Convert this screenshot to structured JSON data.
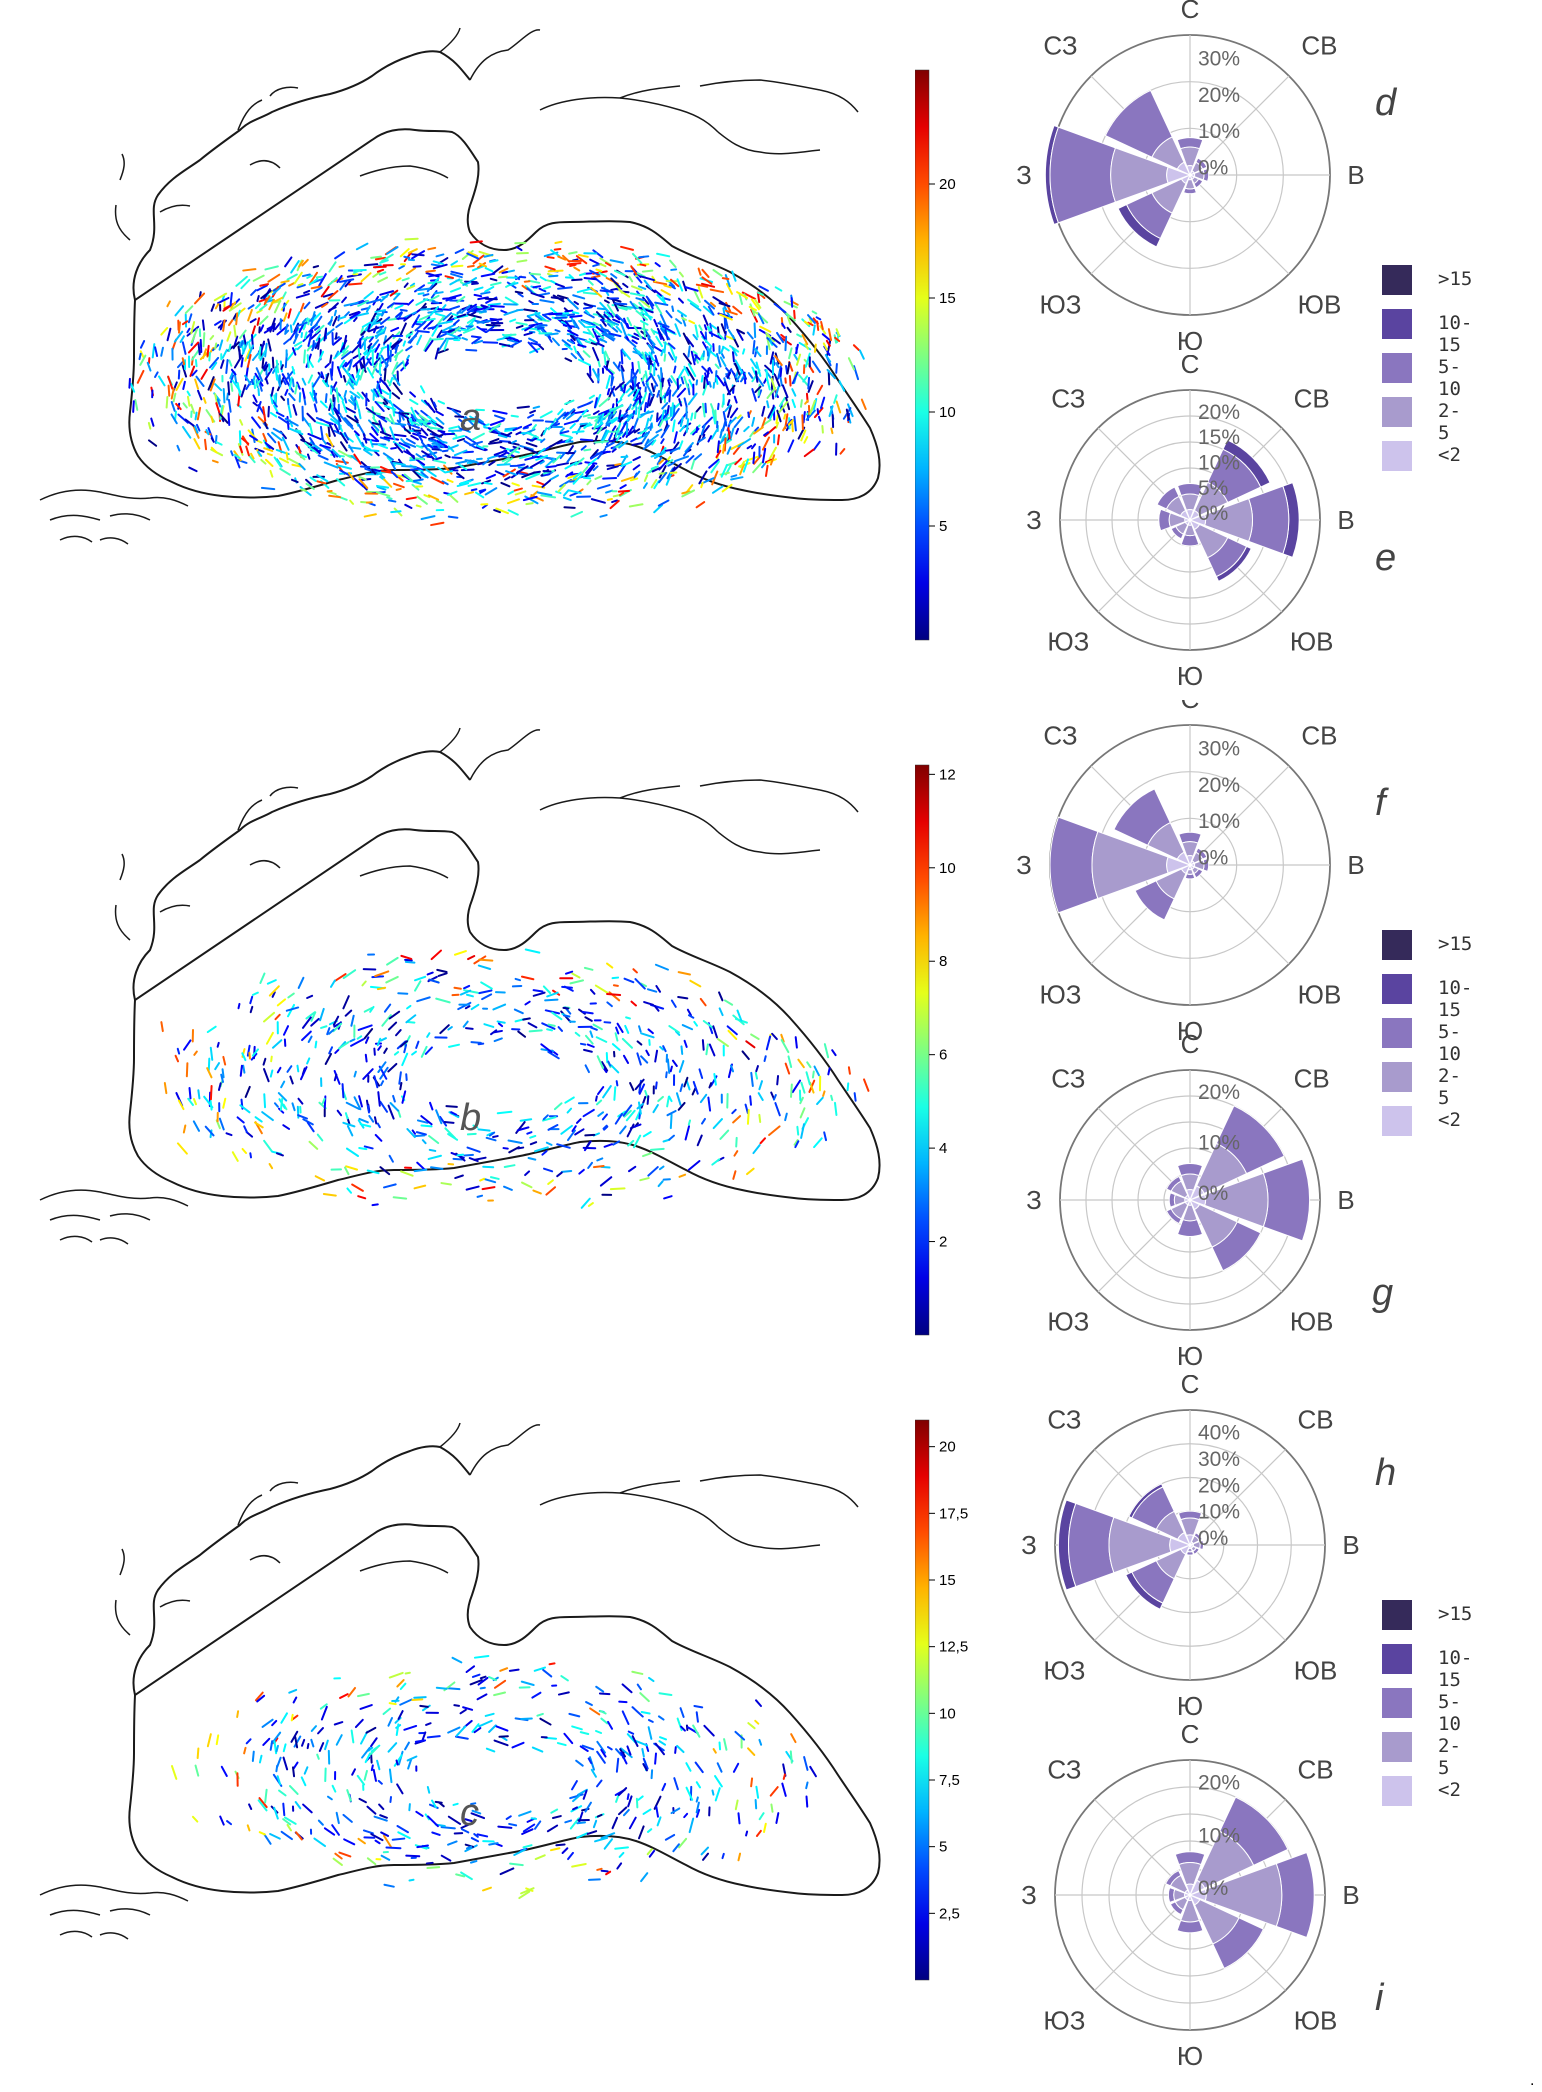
{
  "colors": {
    "land_outline": "#1a1a1a",
    "rose_grid": "#c8c8c8",
    "rose_border": "#777777"
  },
  "legend": [
    {
      "label": ">15",
      "color": "#352a5a"
    },
    {
      "label": "10-15",
      "color": "#5a44a0"
    },
    {
      "label": "5-10",
      "color": "#8a76bf"
    },
    {
      "label": "2-5",
      "color": "#a89bcd"
    },
    {
      "label": "<2",
      "color": "#cdc3ec"
    }
  ],
  "direction_labels": [
    "С",
    "СВ",
    "В",
    "ЮВ",
    "Ю",
    "ЮЗ",
    "З",
    "СЗ"
  ],
  "chart_data": [
    {
      "type": "map",
      "label": "a",
      "colorbar": {
        "min": 0,
        "max": 25,
        "ticks": [
          "20",
          "15",
          "10",
          "5"
        ],
        "tick_values": [
          20,
          15,
          10,
          5
        ]
      }
    },
    {
      "type": "map",
      "label": "b",
      "colorbar": {
        "min": 0,
        "max": 12.2,
        "ticks": [
          "12",
          "10",
          "8",
          "6",
          "4",
          "2"
        ],
        "tick_values": [
          12,
          10,
          8,
          6,
          4,
          2
        ]
      }
    },
    {
      "type": "map",
      "label": "c",
      "colorbar": {
        "min": 0,
        "max": 21,
        "ticks": [
          "20",
          "17,5",
          "15",
          "12,5",
          "10",
          "7,5",
          "5",
          "2,5"
        ],
        "tick_values": [
          20,
          17.5,
          15,
          12.5,
          10,
          7.5,
          5,
          2.5
        ]
      }
    },
    {
      "type": "windrose",
      "label": "d",
      "rmax": 30,
      "rings": [
        10,
        20,
        30
      ],
      "ring_labels": [
        "0%",
        "10%",
        "20%",
        "30%"
      ],
      "directions": [
        "С",
        "СВ",
        "В",
        "ЮВ",
        "Ю",
        "ЮЗ",
        "З",
        "СЗ"
      ],
      "bins": [
        "<2",
        "2-5",
        "5-10",
        "10-15",
        ">15"
      ],
      "values": [
        [
          2,
          4,
          2,
          0,
          0
        ],
        [
          1,
          2,
          1,
          0,
          0
        ],
        [
          1,
          2,
          1,
          0,
          0
        ],
        [
          1,
          1,
          1,
          0,
          0
        ],
        [
          1,
          2,
          1,
          0,
          0
        ],
        [
          2,
          7,
          6,
          2,
          0
        ],
        [
          5,
          12,
          13,
          1,
          0
        ],
        [
          3,
          6,
          11,
          0,
          0
        ]
      ]
    },
    {
      "type": "windrose",
      "label": "e",
      "rmax": 25,
      "rings": [
        5,
        10,
        15,
        20,
        25
      ],
      "ring_labels": [
        "0%",
        "5%",
        "10%",
        "15%",
        "20%"
      ],
      "directions": [
        "С",
        "СВ",
        "В",
        "ЮВ",
        "Ю",
        "ЮЗ",
        "З",
        "СЗ"
      ],
      "bins": [
        "<2",
        "2-5",
        "5-10",
        "10-15",
        ">15"
      ],
      "values": [
        [
          2,
          3,
          2,
          0,
          0
        ],
        [
          2,
          6,
          7,
          2,
          0
        ],
        [
          3,
          9,
          7,
          2,
          0
        ],
        [
          2,
          6,
          4,
          1,
          0
        ],
        [
          1,
          2,
          2,
          0,
          0
        ],
        [
          1,
          2,
          1,
          0,
          0
        ],
        [
          1,
          3,
          2,
          0,
          0
        ],
        [
          2,
          3,
          2,
          0,
          0
        ]
      ]
    },
    {
      "type": "windrose",
      "label": "f",
      "rmax": 30,
      "rings": [
        10,
        20,
        30
      ],
      "ring_labels": [
        "0%",
        "10%",
        "20%",
        "30%"
      ],
      "directions": [
        "С",
        "СВ",
        "В",
        "ЮВ",
        "Ю",
        "ЮЗ",
        "З",
        "СЗ"
      ],
      "bins": [
        "<2",
        "2-5",
        "5-10",
        "10-15",
        ">15"
      ],
      "values": [
        [
          2,
          3,
          2,
          0,
          0
        ],
        [
          1,
          2,
          1,
          0,
          0
        ],
        [
          1,
          2,
          1,
          0,
          0
        ],
        [
          1,
          1,
          1,
          0,
          0
        ],
        [
          1,
          1,
          1,
          0,
          0
        ],
        [
          2,
          6,
          5,
          0,
          0
        ],
        [
          5,
          16,
          9,
          0,
          0
        ],
        [
          3,
          7,
          8,
          0,
          0
        ]
      ]
    },
    {
      "type": "windrose",
      "label": "g",
      "rmax": 25,
      "rings": [
        5,
        10,
        15,
        20,
        25
      ],
      "ring_labels": [
        "0%",
        "10%",
        "20%"
      ],
      "directions": [
        "С",
        "СВ",
        "В",
        "ЮВ",
        "Ю",
        "ЮЗ",
        "З",
        "СЗ"
      ],
      "bins": [
        "<2",
        "2-5",
        "5-10",
        "10-15",
        ">15"
      ],
      "values": [
        [
          2,
          3,
          2,
          0,
          0
        ],
        [
          3,
          9,
          8,
          0,
          0
        ],
        [
          3,
          12,
          8,
          0,
          0
        ],
        [
          2,
          8,
          5,
          0,
          0
        ],
        [
          1,
          3,
          3,
          0,
          0
        ],
        [
          1,
          3,
          1,
          0,
          0
        ],
        [
          1,
          2,
          1,
          0,
          0
        ],
        [
          1,
          3,
          1,
          0,
          0
        ]
      ]
    },
    {
      "type": "windrose",
      "label": "h",
      "rmax": 40,
      "rings": [
        10,
        20,
        30,
        40
      ],
      "ring_labels": [
        "0%",
        "10%",
        "20%",
        "30%",
        "40%"
      ],
      "directions": [
        "С",
        "СВ",
        "В",
        "ЮВ",
        "Ю",
        "ЮЗ",
        "З",
        "СЗ"
      ],
      "bins": [
        "<2",
        "2-5",
        "5-10",
        "10-15",
        ">15"
      ],
      "values": [
        [
          3,
          5,
          2,
          0,
          0
        ],
        [
          1,
          2,
          1,
          0,
          0
        ],
        [
          1,
          2,
          1,
          0,
          0
        ],
        [
          1,
          1,
          1,
          0,
          0
        ],
        [
          1,
          1,
          1,
          0,
          0
        ],
        [
          3,
          8,
          8,
          2,
          0
        ],
        [
          6,
          18,
          12,
          3,
          0
        ],
        [
          4,
          7,
          8,
          1,
          0
        ]
      ]
    },
    {
      "type": "windrose",
      "label": "i",
      "rmax": 25,
      "rings": [
        5,
        10,
        15,
        20,
        25
      ],
      "ring_labels": [
        "0%",
        "10%",
        "20%"
      ],
      "directions": [
        "С",
        "СВ",
        "В",
        "ЮВ",
        "Ю",
        "ЮЗ",
        "З",
        "СЗ"
      ],
      "bins": [
        "<2",
        "2-5",
        "5-10",
        "10-15",
        ">15"
      ],
      "values": [
        [
          2,
          4,
          2,
          0,
          0
        ],
        [
          3,
          10,
          7,
          0,
          0
        ],
        [
          3,
          14,
          6,
          0,
          0
        ],
        [
          2,
          8,
          5,
          0,
          0
        ],
        [
          1,
          4,
          2,
          0,
          0
        ],
        [
          1,
          2,
          1,
          0,
          0
        ],
        [
          1,
          2,
          1,
          0,
          0
        ],
        [
          1,
          3,
          1,
          0,
          0
        ]
      ]
    }
  ],
  "trailing_mark": "."
}
